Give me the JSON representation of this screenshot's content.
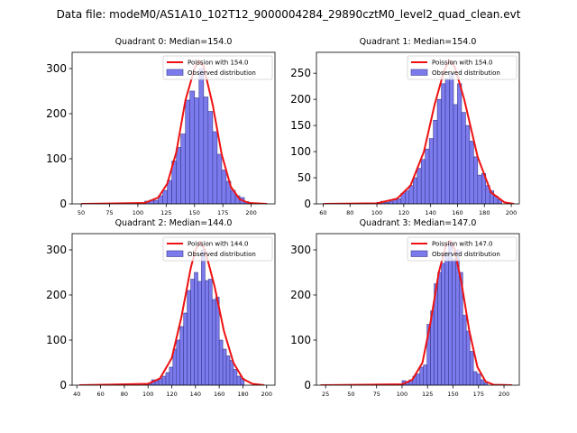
{
  "figure": {
    "suptitle": "Data file: modeM0/AS1A10_102T12_9000004284_29890cztM0_level2_quad_clean.evt"
  },
  "colors": {
    "bar_fill": "#7b7bee",
    "bar_edge": "#3a3a8c",
    "curve": "#ee1111"
  },
  "chart_data": [
    {
      "type": "bar",
      "title": "Quadrant 0: Median=154.0",
      "xlabel": "",
      "ylabel": "",
      "xlim": [
        42,
        221
      ],
      "ylim": [
        0,
        336
      ],
      "xticks": [
        50,
        75,
        100,
        125,
        150,
        175,
        200
      ],
      "yticks": [
        0,
        100,
        200,
        300
      ],
      "legend": [
        "Poission with 154.0",
        "Observed distribution"
      ],
      "legend_position": "top-right",
      "bin_width": 4,
      "bins": [
        106,
        110,
        114,
        118,
        122,
        126,
        130,
        134,
        138,
        142,
        146,
        150,
        154,
        158,
        162,
        166,
        170,
        174,
        178,
        182,
        186,
        190,
        194
      ],
      "values": [
        6,
        8,
        8,
        18,
        30,
        52,
        95,
        125,
        155,
        230,
        250,
        235,
        300,
        237,
        205,
        160,
        110,
        75,
        50,
        30,
        18,
        14,
        5
      ],
      "poisson_mean": 154.0,
      "poisson_x": [
        50,
        106,
        118,
        126,
        134,
        142,
        150,
        154,
        158,
        166,
        174,
        182,
        190,
        198,
        214
      ],
      "poisson_y": [
        0,
        2,
        14,
        45,
        115,
        230,
        300,
        318,
        305,
        220,
        110,
        38,
        10,
        2,
        0
      ]
    },
    {
      "type": "bar",
      "title": "Quadrant 1: Median=154.0",
      "xlabel": "",
      "ylabel": "",
      "xlim": [
        55,
        206
      ],
      "ylim": [
        0,
        290
      ],
      "xticks": [
        60,
        80,
        100,
        120,
        140,
        160,
        180,
        200
      ],
      "yticks": [
        0,
        50,
        100,
        150,
        200,
        250
      ],
      "legend": [
        "Poission with 154.0",
        "Observed distribution"
      ],
      "legend_position": "top-right",
      "bin_width": 3,
      "bins": [
        100,
        103,
        106,
        109,
        112,
        115,
        118,
        121,
        124,
        127,
        130,
        133,
        136,
        139,
        142,
        145,
        148,
        151,
        154,
        157,
        160,
        163,
        166,
        169,
        172,
        175,
        178,
        181,
        184,
        187,
        190
      ],
      "values": [
        3,
        5,
        3,
        5,
        8,
        10,
        20,
        25,
        35,
        50,
        68,
        85,
        105,
        125,
        160,
        200,
        230,
        240,
        250,
        190,
        230,
        175,
        150,
        120,
        90,
        55,
        58,
        35,
        25,
        15,
        8
      ],
      "poisson_mean": 154.0,
      "poisson_x": [
        60,
        100,
        115,
        125,
        135,
        143,
        150,
        154,
        158,
        165,
        175,
        185,
        195,
        202
      ],
      "poisson_y": [
        0,
        1,
        10,
        35,
        100,
        190,
        255,
        275,
        262,
        200,
        90,
        22,
        3,
        0
      ]
    },
    {
      "type": "bar",
      "title": "Quadrant 2: Median=144.0",
      "xlabel": "",
      "ylabel": "",
      "xlim": [
        36,
        207
      ],
      "ylim": [
        0,
        336
      ],
      "xticks": [
        40,
        60,
        80,
        100,
        120,
        140,
        160,
        180,
        200
      ],
      "yticks": [
        0,
        100,
        200,
        300
      ],
      "legend": [
        "Poission with 144.0",
        "Observed distribution"
      ],
      "legend_position": "top-right",
      "bin_width": 3,
      "bins": [
        97,
        100,
        103,
        106,
        109,
        112,
        115,
        118,
        121,
        124,
        127,
        130,
        133,
        136,
        139,
        142,
        145,
        148,
        151,
        154,
        157,
        160,
        163,
        166,
        169,
        172,
        175,
        178
      ],
      "values": [
        3,
        5,
        12,
        10,
        15,
        20,
        28,
        40,
        80,
        100,
        130,
        160,
        210,
        235,
        250,
        230,
        300,
        232,
        235,
        190,
        195,
        100,
        80,
        65,
        55,
        35,
        20,
        15
      ],
      "poisson_mean": 144.0,
      "poisson_x": [
        42,
        100,
        110,
        120,
        128,
        136,
        140,
        144,
        148,
        156,
        164,
        172,
        180,
        188,
        198
      ],
      "poisson_y": [
        0,
        3,
        15,
        60,
        150,
        260,
        300,
        318,
        300,
        220,
        120,
        50,
        14,
        3,
        0
      ]
    },
    {
      "type": "bar",
      "title": "Quadrant 3: Median=147.0",
      "xlabel": "",
      "ylabel": "",
      "xlim": [
        16,
        215
      ],
      "ylim": [
        0,
        336
      ],
      "xticks": [
        25,
        50,
        75,
        100,
        125,
        150,
        175,
        200
      ],
      "yticks": [
        0,
        100,
        200,
        300
      ],
      "legend": [
        "Poission with 147.0",
        "Observed distribution"
      ],
      "legend_position": "top-right",
      "bin_width": 3.5,
      "bins": [
        100,
        103.5,
        107,
        110.5,
        114,
        117.5,
        121,
        124.5,
        128,
        131.5,
        135,
        138.5,
        142,
        145.5,
        149,
        152.5,
        156,
        159.5,
        163,
        166.5,
        170,
        173.5,
        177,
        180.5
      ],
      "values": [
        10,
        8,
        12,
        20,
        25,
        40,
        45,
        135,
        165,
        225,
        250,
        270,
        295,
        318,
        280,
        300,
        250,
        155,
        120,
        75,
        30,
        25,
        12,
        5
      ],
      "poisson_mean": 147.0,
      "poisson_x": [
        20,
        100,
        110,
        120,
        128,
        136,
        143,
        147,
        151,
        158,
        166,
        174,
        182,
        190,
        208
      ],
      "poisson_y": [
        0,
        2,
        12,
        50,
        140,
        250,
        310,
        320,
        305,
        230,
        120,
        40,
        8,
        1,
        0
      ]
    }
  ]
}
